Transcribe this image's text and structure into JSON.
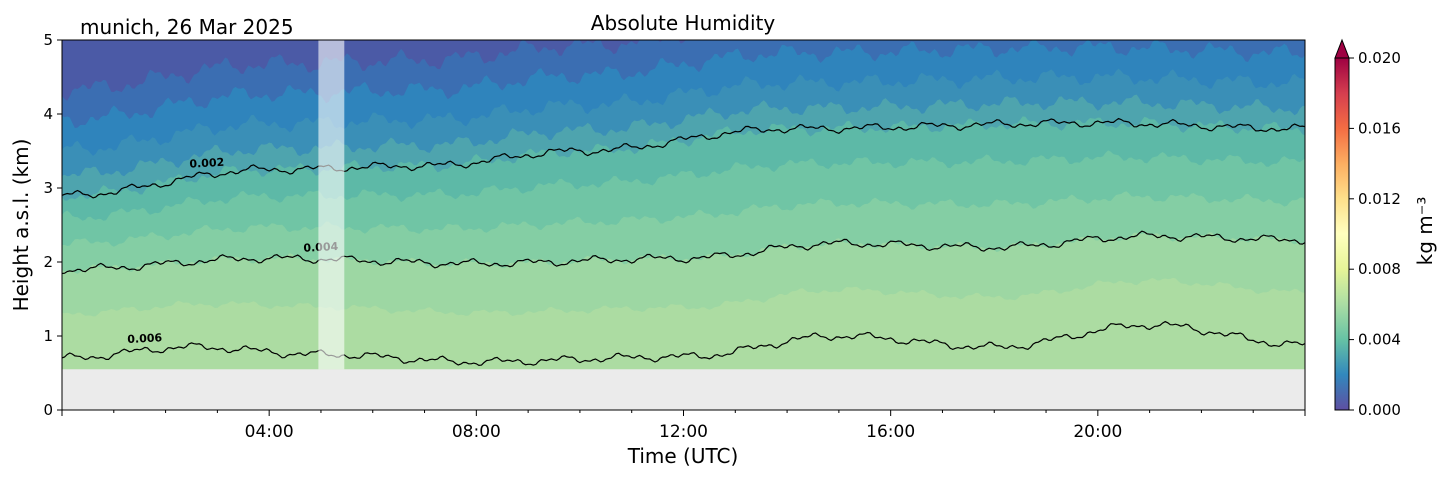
{
  "chart_data": {
    "type": "heatmap",
    "title": "Absolute Humidity",
    "location_date": "munich, 26 Mar 2025",
    "xlabel": "Time (UTC)",
    "ylabel": "Height a.s.l. (km)",
    "xlim_hours": [
      0,
      24
    ],
    "ylim_km": [
      0,
      5
    ],
    "x_ticks": [
      {
        "hour": 4,
        "label": "04:00"
      },
      {
        "hour": 8,
        "label": "08:00"
      },
      {
        "hour": 12,
        "label": "12:00"
      },
      {
        "hour": 16,
        "label": "16:00"
      },
      {
        "hour": 20,
        "label": "20:00"
      }
    ],
    "y_ticks": [
      {
        "value": 0,
        "label": "0"
      },
      {
        "value": 1,
        "label": "1"
      },
      {
        "value": 2,
        "label": "2"
      },
      {
        "value": 3,
        "label": "3"
      },
      {
        "value": 4,
        "label": "4"
      },
      {
        "value": 5,
        "label": "5"
      }
    ],
    "data_valid_height_range_km": [
      0.55,
      5
    ],
    "data_gap_hours": [
      4.95,
      5.45
    ],
    "colorbar": {
      "label": "kg m⁻³",
      "range": [
        0,
        0.02
      ],
      "extend": "max",
      "ticks": [
        "0.000",
        "0.004",
        "0.008",
        "0.012",
        "0.016",
        "0.020"
      ],
      "colormap": "Spectral_r",
      "colors": [
        "#5e4fa2",
        "#3288bd",
        "#66c2a5",
        "#abdda4",
        "#e6f598",
        "#ffffbf",
        "#fee08b",
        "#fdae61",
        "#f46d43",
        "#d53e4f",
        "#9e0142"
      ]
    },
    "band_colors": [
      "#acdca2",
      "#9dd7a3",
      "#84cea4",
      "#70c5a5",
      "#5db9a7",
      "#4ea4ae",
      "#3a8fb7",
      "#2f84bc",
      "#3b6eb2",
      "#4b5aa6",
      "#5f4fa2"
    ],
    "contours": [
      {
        "level": 0.006,
        "label": "0.006",
        "height_km_at": [
          [
            0,
            0.7
          ],
          [
            2.5,
            0.85
          ],
          [
            5,
            0.75
          ],
          [
            8,
            0.65
          ],
          [
            12,
            0.72
          ],
          [
            15,
            1.0
          ],
          [
            18,
            0.85
          ],
          [
            21,
            1.15
          ],
          [
            24,
            0.88
          ]
        ]
      },
      {
        "level": 0.004,
        "label": "0.004",
        "height_km_at": [
          [
            0,
            1.9
          ],
          [
            4,
            2.05
          ],
          [
            8,
            1.98
          ],
          [
            12,
            2.05
          ],
          [
            15,
            2.25
          ],
          [
            18,
            2.2
          ],
          [
            21,
            2.35
          ],
          [
            24,
            2.3
          ]
        ]
      },
      {
        "level": 0.002,
        "label": "0.002",
        "height_km_at": [
          [
            0,
            2.9
          ],
          [
            4,
            3.25
          ],
          [
            7,
            3.3
          ],
          [
            10,
            3.5
          ],
          [
            14,
            3.8
          ],
          [
            20,
            3.88
          ],
          [
            24,
            3.8
          ]
        ]
      }
    ]
  }
}
